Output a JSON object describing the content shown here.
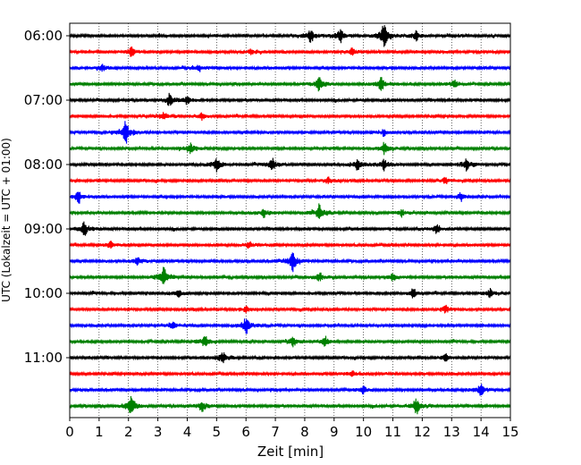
{
  "chart_data": {
    "type": "line",
    "title": "",
    "xlabel": "Zeit  [min]",
    "ylabel": "UTC (Lokalzeit = UTC + 01:00)",
    "xlim": [
      0,
      15
    ],
    "x_ticks": [
      0,
      1,
      2,
      3,
      4,
      5,
      6,
      7,
      8,
      9,
      10,
      11,
      12,
      13,
      14,
      15
    ],
    "y_tick_labels": [
      "06:00",
      "07:00",
      "08:00",
      "09:00",
      "10:00",
      "11:00"
    ],
    "trace_interval_minutes": 15,
    "grid": "vertical dotted lines at each minute",
    "trace_colors": [
      "#000000",
      "#ff0000",
      "#0000ff",
      "#008000"
    ],
    "series": [
      {
        "start": "06:00",
        "color": "#000000",
        "bursts": [
          {
            "t": 8.2,
            "amp": 6
          },
          {
            "t": 9.2,
            "amp": 6
          },
          {
            "t": 10.7,
            "amp": 11
          },
          {
            "t": 11.8,
            "amp": 4
          }
        ]
      },
      {
        "start": "06:15",
        "color": "#ff0000",
        "bursts": [
          {
            "t": 2.1,
            "amp": 4
          },
          {
            "t": 6.2,
            "amp": 3
          },
          {
            "t": 9.6,
            "amp": 3
          }
        ]
      },
      {
        "start": "06:30",
        "color": "#0000ff",
        "bursts": [
          {
            "t": 1.1,
            "amp": 3
          },
          {
            "t": 4.4,
            "amp": 3
          }
        ]
      },
      {
        "start": "06:45",
        "color": "#008000",
        "bursts": [
          {
            "t": 8.5,
            "amp": 6
          },
          {
            "t": 10.6,
            "amp": 6
          },
          {
            "t": 13.1,
            "amp": 4
          }
        ]
      },
      {
        "start": "07:00",
        "color": "#000000",
        "bursts": [
          {
            "t": 3.4,
            "amp": 5
          },
          {
            "t": 4.0,
            "amp": 3
          }
        ]
      },
      {
        "start": "07:15",
        "color": "#ff0000",
        "bursts": [
          {
            "t": 3.2,
            "amp": 4
          },
          {
            "t": 4.5,
            "amp": 3
          }
        ]
      },
      {
        "start": "07:30",
        "color": "#0000ff",
        "bursts": [
          {
            "t": 1.9,
            "amp": 10
          },
          {
            "t": 10.7,
            "amp": 3
          }
        ]
      },
      {
        "start": "07:45",
        "color": "#008000",
        "bursts": [
          {
            "t": 4.1,
            "amp": 5
          },
          {
            "t": 10.7,
            "amp": 5
          }
        ]
      },
      {
        "start": "08:00",
        "color": "#000000",
        "bursts": [
          {
            "t": 5.0,
            "amp": 6
          },
          {
            "t": 6.9,
            "amp": 5
          },
          {
            "t": 9.8,
            "amp": 5
          },
          {
            "t": 10.7,
            "amp": 5
          },
          {
            "t": 13.5,
            "amp": 5
          }
        ]
      },
      {
        "start": "08:15",
        "color": "#ff0000",
        "bursts": [
          {
            "t": 8.8,
            "amp": 3
          },
          {
            "t": 12.8,
            "amp": 3
          }
        ]
      },
      {
        "start": "08:30",
        "color": "#0000ff",
        "bursts": [
          {
            "t": 0.3,
            "amp": 6
          },
          {
            "t": 13.3,
            "amp": 3
          }
        ]
      },
      {
        "start": "08:45",
        "color": "#008000",
        "bursts": [
          {
            "t": 8.5,
            "amp": 7
          },
          {
            "t": 6.6,
            "amp": 4
          },
          {
            "t": 11.3,
            "amp": 3
          }
        ]
      },
      {
        "start": "09:00",
        "color": "#000000",
        "bursts": [
          {
            "t": 0.5,
            "amp": 6
          },
          {
            "t": 12.5,
            "amp": 4
          }
        ]
      },
      {
        "start": "09:15",
        "color": "#ff0000",
        "bursts": [
          {
            "t": 1.4,
            "amp": 3
          },
          {
            "t": 6.1,
            "amp": 3
          }
        ]
      },
      {
        "start": "09:30",
        "color": "#0000ff",
        "bursts": [
          {
            "t": 7.6,
            "amp": 9
          },
          {
            "t": 2.3,
            "amp": 3
          }
        ]
      },
      {
        "start": "09:45",
        "color": "#008000",
        "bursts": [
          {
            "t": 3.2,
            "amp": 8
          },
          {
            "t": 8.5,
            "amp": 4
          },
          {
            "t": 11.0,
            "amp": 3
          }
        ]
      },
      {
        "start": "10:00",
        "color": "#000000",
        "bursts": [
          {
            "t": 11.7,
            "amp": 4
          },
          {
            "t": 14.3,
            "amp": 4
          },
          {
            "t": 3.7,
            "amp": 3
          }
        ]
      },
      {
        "start": "10:15",
        "color": "#ff0000",
        "bursts": [
          {
            "t": 6.0,
            "amp": 3
          },
          {
            "t": 12.8,
            "amp": 3
          }
        ]
      },
      {
        "start": "10:30",
        "color": "#0000ff",
        "bursts": [
          {
            "t": 6.0,
            "amp": 7
          },
          {
            "t": 3.5,
            "amp": 3
          }
        ]
      },
      {
        "start": "10:45",
        "color": "#008000",
        "bursts": [
          {
            "t": 4.6,
            "amp": 5
          },
          {
            "t": 7.6,
            "amp": 4
          },
          {
            "t": 8.7,
            "amp": 4
          }
        ]
      },
      {
        "start": "11:00",
        "color": "#000000",
        "bursts": [
          {
            "t": 5.2,
            "amp": 5
          },
          {
            "t": 12.8,
            "amp": 3
          }
        ]
      },
      {
        "start": "11:15",
        "color": "#ff0000",
        "bursts": [
          {
            "t": 9.6,
            "amp": 3
          }
        ]
      },
      {
        "start": "11:30",
        "color": "#0000ff",
        "bursts": [
          {
            "t": 14.0,
            "amp": 5
          },
          {
            "t": 10.0,
            "amp": 3
          }
        ]
      },
      {
        "start": "11:45",
        "color": "#008000",
        "bursts": [
          {
            "t": 2.1,
            "amp": 9
          },
          {
            "t": 11.8,
            "amp": 7
          },
          {
            "t": 4.5,
            "amp": 5
          }
        ]
      }
    ]
  }
}
